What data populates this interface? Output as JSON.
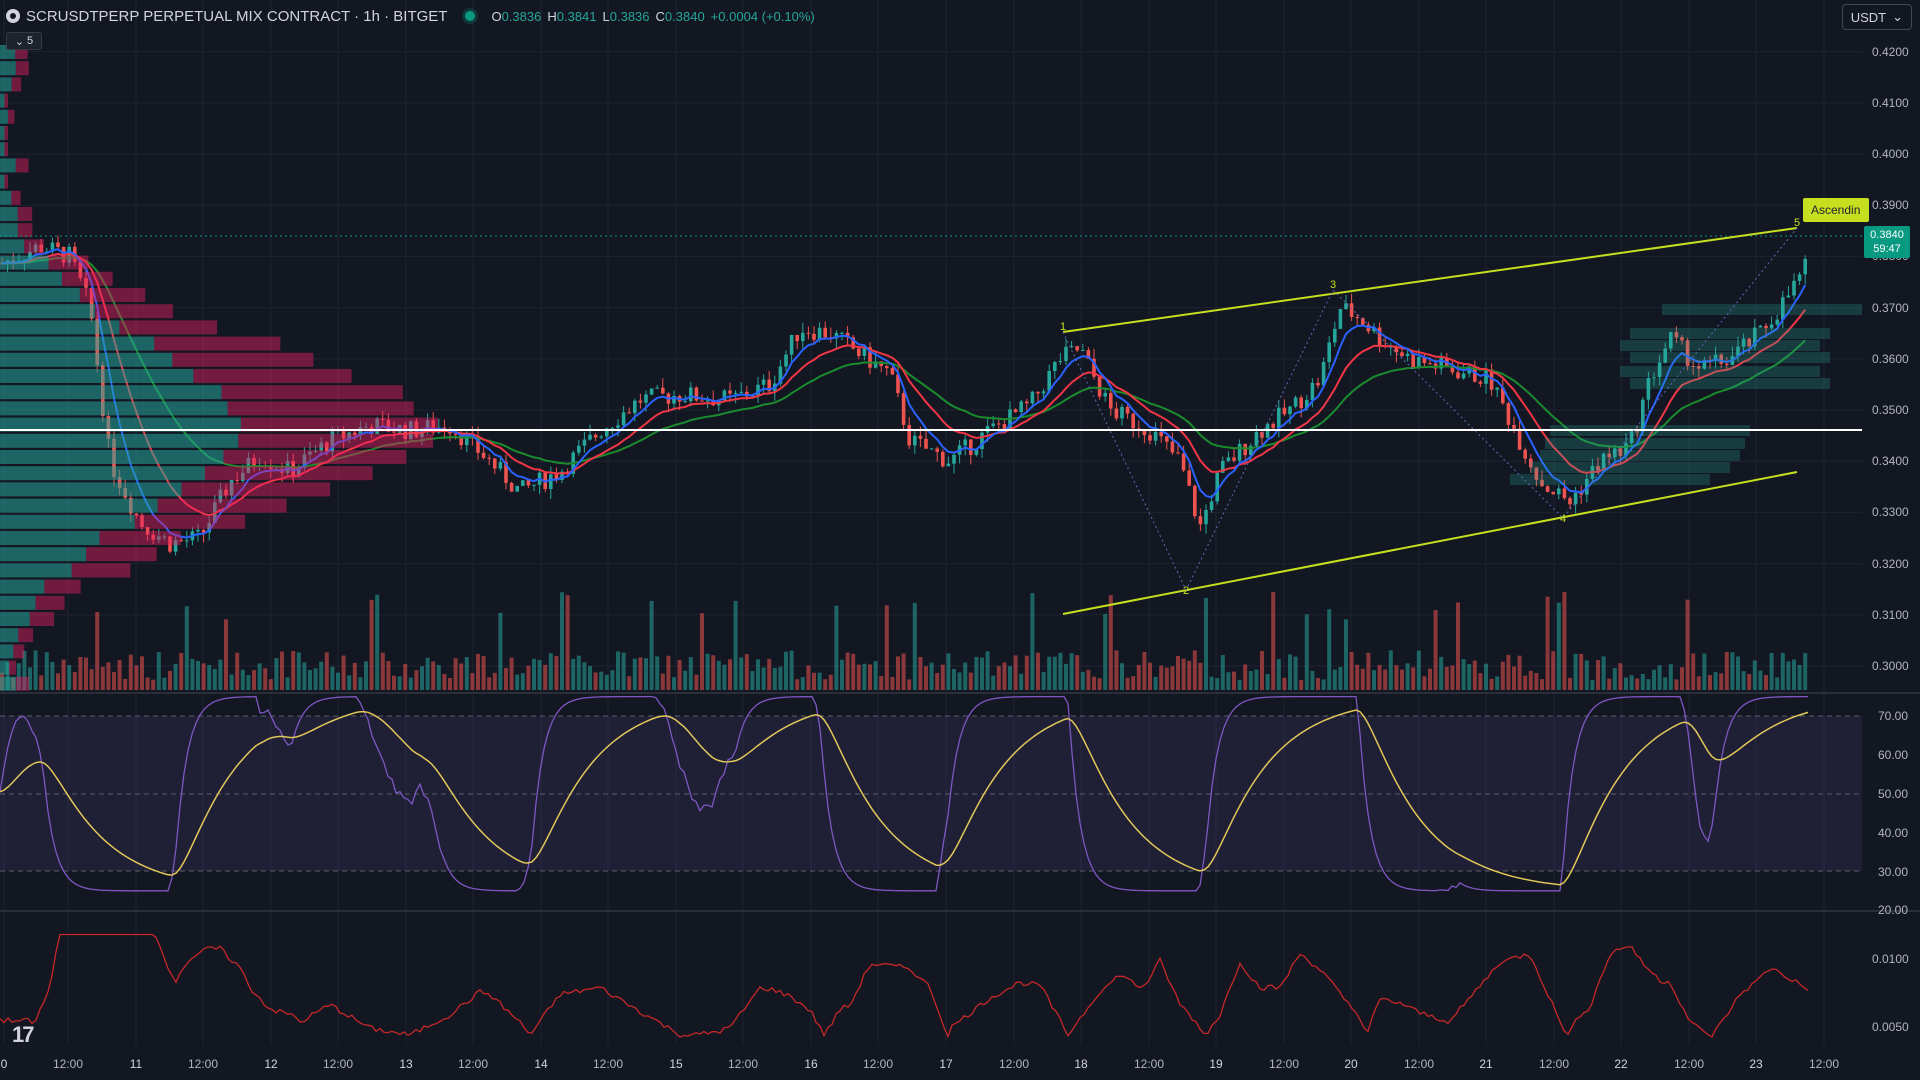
{
  "header": {
    "symbol_title": "SCRUSDTPERP PERPETUAL MIX CONTRACT · 1h · BITGET",
    "ohlc": [
      {
        "k": "O",
        "v": "0.3836"
      },
      {
        "k": "H",
        "v": "0.3841"
      },
      {
        "k": "L",
        "v": "0.3836"
      },
      {
        "k": "C",
        "v": "0.3840"
      },
      {
        "k": "",
        "v": "+0.0004 (+0.10%)"
      }
    ],
    "collapsed_count": "5",
    "currency": "USDT"
  },
  "price_axis": [
    "0.4200",
    "0.4100",
    "0.4000",
    "0.3900",
    "0.3800",
    "0.3700",
    "0.3600",
    "0.3500",
    "0.3400",
    "0.3300",
    "0.3200",
    "0.3100",
    "0.3000"
  ],
  "current_price": {
    "price": "0.3840",
    "countdown": "59:47"
  },
  "pattern_label": "Ascendin",
  "wave_labels": [
    "1",
    "2",
    "3",
    "4",
    "5"
  ],
  "rsi_axis": [
    "70.00",
    "60.00",
    "50.00",
    "40.00",
    "30.00",
    "20.00"
  ],
  "lower_axis": [
    "0.0100",
    "0.0050"
  ],
  "time_axis": [
    "0",
    "12:00",
    "11",
    "12:00",
    "12",
    "12:00",
    "13",
    "12:00",
    "14",
    "12:00",
    "15",
    "12:00",
    "16",
    "12:00",
    "17",
    "12:00",
    "18",
    "12:00",
    "19",
    "12:00",
    "20",
    "12:00",
    "21",
    "12:00",
    "22",
    "12:00",
    "23",
    "12:00"
  ],
  "colors": {
    "background": "#131722",
    "up": "#26a69a",
    "down": "#ef5350",
    "ema_fast": "#2962ff",
    "ema_mid": "#f23645",
    "ema_slow": "#1b8c2e",
    "channel": "#c6df1f",
    "rsi_line": "#7e57c2",
    "rsi_ma": "#e2c85a",
    "lower_line": "#c62828"
  },
  "logo": "17"
}
